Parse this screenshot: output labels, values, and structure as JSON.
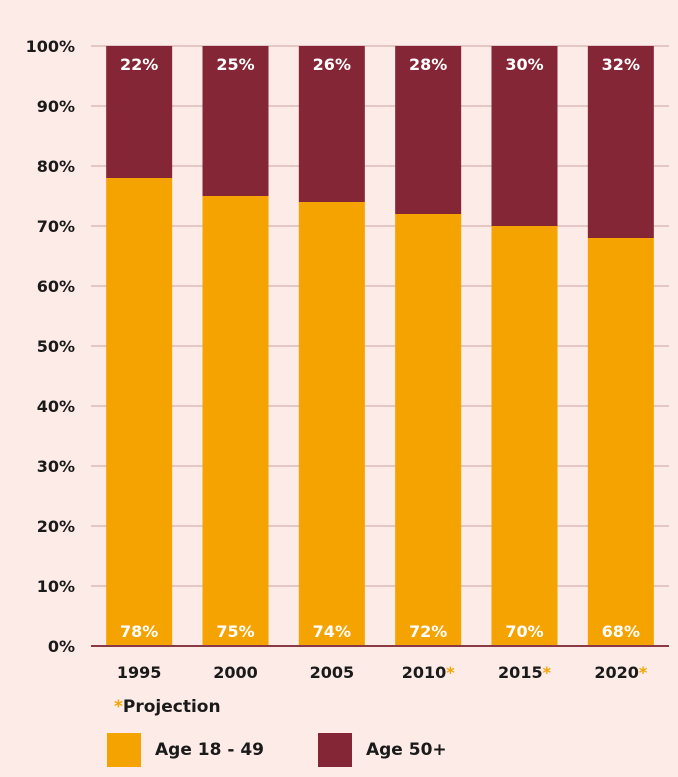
{
  "chart_data": {
    "type": "bar",
    "stacked": true,
    "categories": [
      "1995",
      "2000",
      "2005",
      "2010",
      "2015",
      "2020"
    ],
    "projected": [
      false,
      false,
      false,
      true,
      true,
      true
    ],
    "series": [
      {
        "name": "Age 18 - 49",
        "color": "#f5a300",
        "values": [
          78,
          75,
          74,
          72,
          70,
          68
        ]
      },
      {
        "name": "Age 50+",
        "color": "#852636",
        "values": [
          22,
          25,
          26,
          28,
          30,
          32
        ]
      }
    ],
    "ylim": [
      0,
      100
    ],
    "yticks": [
      0,
      10,
      20,
      30,
      40,
      50,
      60,
      70,
      80,
      90,
      100
    ],
    "ytick_suffix": "%",
    "label_suffix": "%",
    "grid": true,
    "projection_marker": "*",
    "projection_color": "#f5a300",
    "legend_position": "bottom"
  },
  "footnote": {
    "marker": "*",
    "text": "Projection"
  },
  "colors": {
    "background": "#fcebe6",
    "gridline": "#8b3a44",
    "axis_text": "#1a1a1a"
  }
}
